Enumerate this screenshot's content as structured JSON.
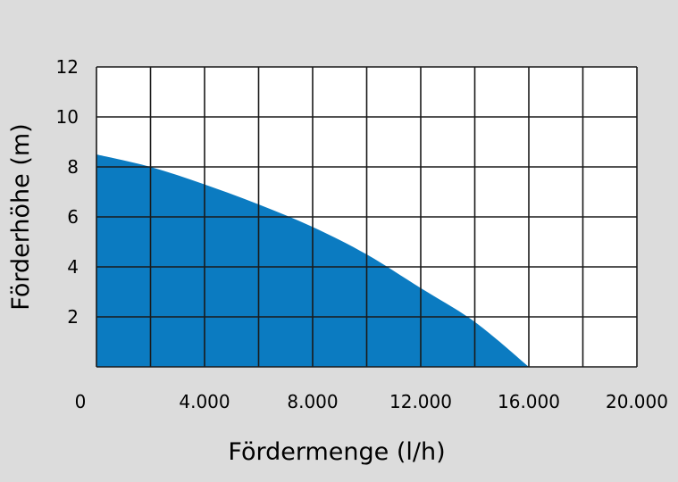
{
  "chart_data": {
    "type": "area",
    "title": "",
    "xlabel": "Fördermenge (l/h)",
    "ylabel": "Förderhöhe (m)",
    "xlim": [
      0,
      20000
    ],
    "ylim": [
      0,
      12
    ],
    "grid": true,
    "x_ticks": [
      0,
      4000,
      8000,
      12000,
      16000,
      20000
    ],
    "x_tick_labels": [
      "0",
      "4.000",
      "8.000",
      "12.000",
      "16.000",
      "20.000"
    ],
    "y_ticks": [
      2,
      4,
      6,
      8,
      10,
      12
    ],
    "y_tick_labels": [
      "2",
      "4",
      "6",
      "8",
      "10",
      "12"
    ],
    "x": [
      0,
      2000,
      4000,
      6000,
      8000,
      10000,
      12000,
      14000,
      16000
    ],
    "y": [
      8.5,
      8.0,
      7.3,
      6.5,
      5.6,
      4.5,
      3.15,
      1.8,
      0
    ],
    "fill_color": "#0b7bc1",
    "grid_color": "#1a1a1a"
  }
}
